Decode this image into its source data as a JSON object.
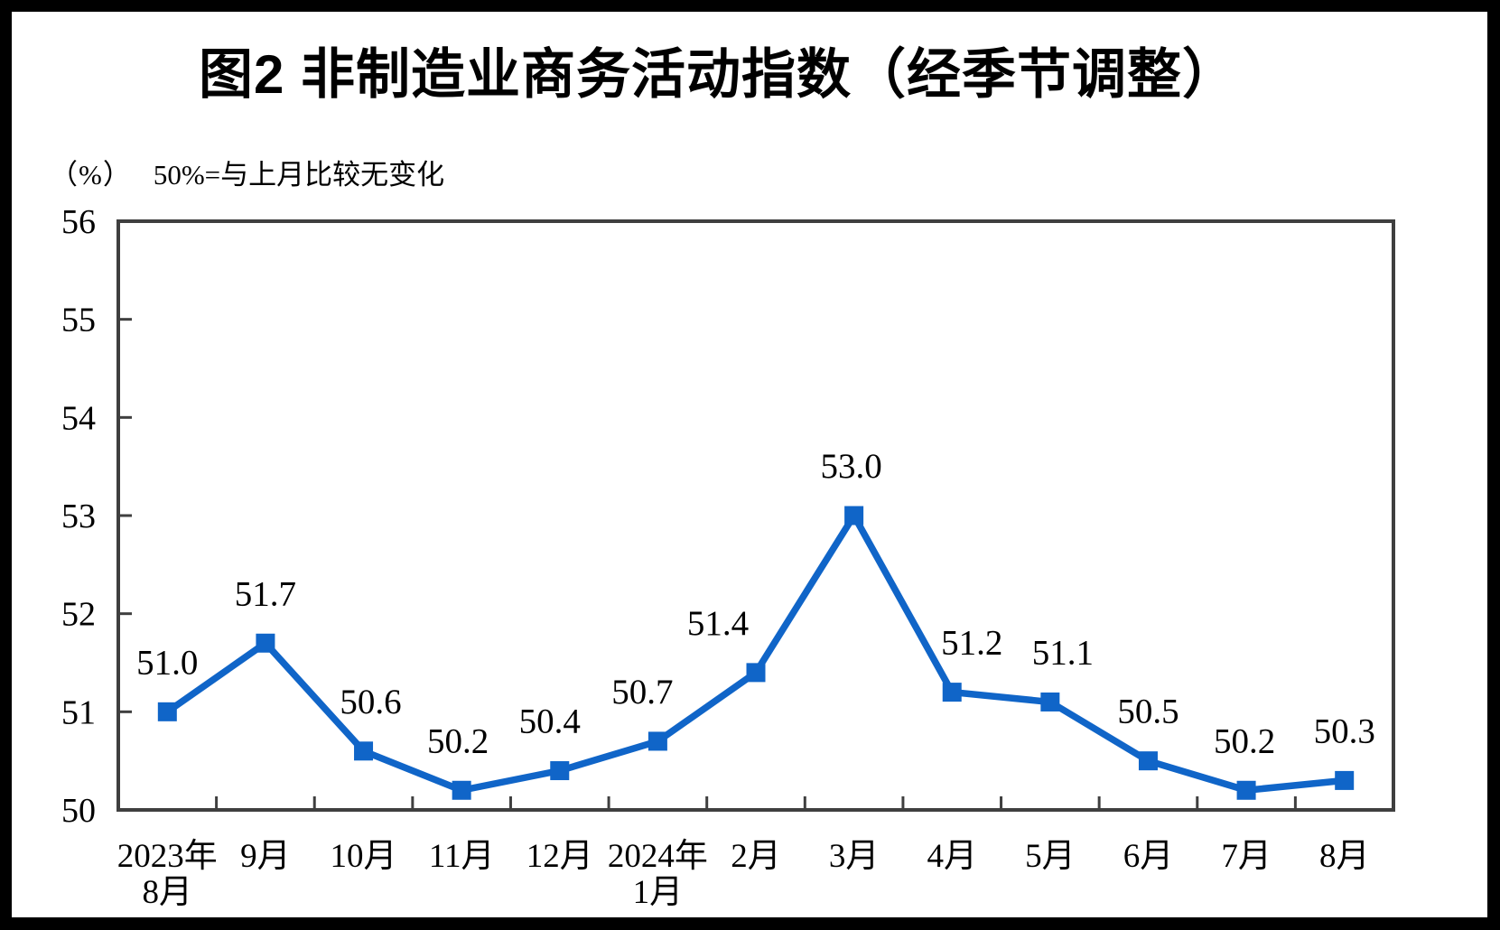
{
  "title": "图2 非制造业商务活动指数（经季节调整）",
  "axis_note": {
    "unit": "（%）",
    "reference": "50%=与上月比较无变化"
  },
  "chart_data": {
    "type": "line",
    "title": "图2 非制造业商务活动指数（经季节调整）",
    "unit_label": "（%）",
    "annotation": "50%=与上月比较无变化",
    "categories": [
      [
        "2023年",
        "8月"
      ],
      [
        "9月"
      ],
      [
        "10月"
      ],
      [
        "11月"
      ],
      [
        "12月"
      ],
      [
        "2024年",
        "1月"
      ],
      [
        "2月"
      ],
      [
        "3月"
      ],
      [
        "4月"
      ],
      [
        "5月"
      ],
      [
        "6月"
      ],
      [
        "7月"
      ],
      [
        "8月"
      ]
    ],
    "values": [
      51.0,
      51.7,
      50.6,
      50.2,
      50.4,
      50.7,
      51.4,
      53.0,
      51.2,
      51.1,
      50.5,
      50.2,
      50.3
    ],
    "data_labels": [
      "51.0",
      "51.7",
      "50.6",
      "50.2",
      "50.4",
      "50.7",
      "51.4",
      "53.0",
      "51.2",
      "51.1",
      "50.5",
      "50.2",
      "50.3"
    ],
    "ylim": [
      50,
      56
    ],
    "yticks": [
      50,
      51,
      52,
      53,
      54,
      55,
      56
    ],
    "ytick_interval": 1,
    "xlabel": "",
    "ylabel": "（%）",
    "grid": false,
    "legend": "none",
    "marker": "square",
    "colors": {
      "line": "#1065C8",
      "marker": "#1065C8",
      "axis": "#3F3F3F",
      "text": "#000000",
      "background": "#FFFFFF",
      "page_border": "#000000"
    }
  }
}
